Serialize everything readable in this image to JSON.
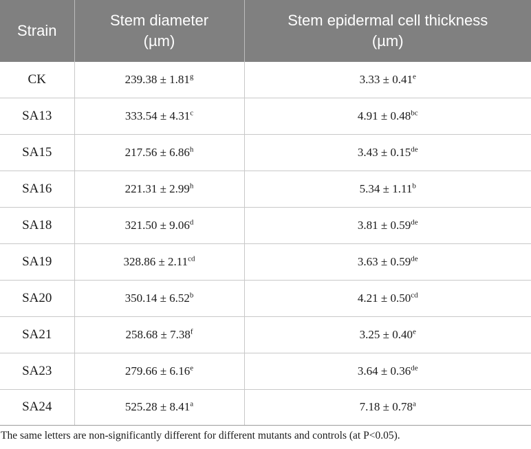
{
  "table": {
    "headers": [
      {
        "line1": "Strain",
        "line2": ""
      },
      {
        "line1": "Stem diameter",
        "line2": "(µm)"
      },
      {
        "line1": "Stem epidermal cell thickness",
        "line2": "(µm)"
      }
    ],
    "rows": [
      {
        "strain": "CK",
        "diameter": "239.38 ± 1.81",
        "diameter_sup": "g",
        "thickness": "3.33 ± 0.41",
        "thickness_sup": "e"
      },
      {
        "strain": "SA13",
        "diameter": "333.54 ± 4.31",
        "diameter_sup": "c",
        "thickness": "4.91 ± 0.48",
        "thickness_sup": "bc"
      },
      {
        "strain": "SA15",
        "diameter": "217.56 ± 6.86",
        "diameter_sup": "h",
        "thickness": "3.43 ± 0.15",
        "thickness_sup": "de"
      },
      {
        "strain": "SA16",
        "diameter": "221.31 ± 2.99",
        "diameter_sup": "h",
        "thickness": "5.34 ± 1.11",
        "thickness_sup": "b"
      },
      {
        "strain": "SA18",
        "diameter": "321.50 ± 9.06",
        "diameter_sup": "d",
        "thickness": "3.81 ± 0.59",
        "thickness_sup": "de"
      },
      {
        "strain": "SA19",
        "diameter": "328.86 ± 2.11",
        "diameter_sup": "cd",
        "thickness": "3.63 ± 0.59",
        "thickness_sup": "de"
      },
      {
        "strain": "SA20",
        "diameter": "350.14 ± 6.52",
        "diameter_sup": "b",
        "thickness": "4.21 ± 0.50",
        "thickness_sup": "cd"
      },
      {
        "strain": "SA21",
        "diameter": "258.68 ± 7.38",
        "diameter_sup": "f",
        "thickness": "3.25 ± 0.40",
        "thickness_sup": "e"
      },
      {
        "strain": "SA23",
        "diameter": "279.66 ± 6.16",
        "diameter_sup": "e",
        "thickness": "3.64 ± 0.36",
        "thickness_sup": "de"
      },
      {
        "strain": "SA24",
        "diameter": "525.28 ± 8.41",
        "diameter_sup": "a",
        "thickness": "7.18 ± 0.78",
        "thickness_sup": "a"
      }
    ]
  },
  "footnote": "The same letters are non-significantly different for different mutants and controls (at P<0.05).",
  "colors": {
    "header_bg": "#808080",
    "header_text": "#ffffff",
    "grid": "#c8c8c8"
  }
}
